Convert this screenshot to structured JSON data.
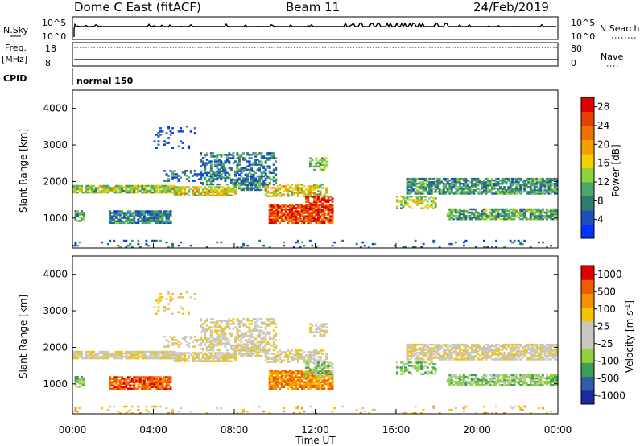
{
  "header": {
    "station": "Dome C East (fitACF)",
    "beam": "Beam 11",
    "date": "24/Feb/2019"
  },
  "summary_panels": {
    "nsky_label": "N.Sky",
    "nsearch_label": "N.Search",
    "freq_label": "Freq.",
    "freq_unit": "[MHz]",
    "nave_label": "Nave",
    "cpid_label": "CPID",
    "cpid_value": "normal 150",
    "noise_ticks": [
      "10^5",
      "10^0"
    ],
    "freq_ticks": [
      "18",
      "8"
    ],
    "nave_ticks": [
      "80",
      "0"
    ]
  },
  "colors": {
    "power_scale": [
      "#0033ff",
      "#1f4fbf",
      "#2e7d6e",
      "#4aa86a",
      "#8fd13a",
      "#f0d000",
      "#f5a000",
      "#f07000",
      "#e84000",
      "#e00000"
    ],
    "velocity_scale": [
      "#e00000",
      "#f05a00",
      "#f59000",
      "#f5c400",
      "#c8c8c0",
      "#c8c8c0",
      "#8fd13a",
      "#3a9e5a",
      "#2f5fa8",
      "#1a2aa0"
    ]
  },
  "chart_data": [
    {
      "type": "heatmap",
      "panel": "power",
      "xlabel": "",
      "ylabel": "Slant Range [km]",
      "xlim": [
        0,
        24
      ],
      "ylim": [
        180,
        4500
      ],
      "y_ticks": [
        "1000",
        "2000",
        "3000",
        "4000"
      ],
      "colorbar_label": "Power [dB]",
      "colorbar_ticks": [
        "4",
        "8",
        "12",
        "16",
        "20",
        "24",
        "28"
      ],
      "colorbar_range": [
        0,
        30
      ]
    },
    {
      "type": "heatmap",
      "panel": "velocity",
      "xlabel": "Time UT",
      "ylabel": "Slant Range [km]",
      "xlim": [
        0,
        24
      ],
      "ylim": [
        180,
        4500
      ],
      "x_ticks": [
        "00:00",
        "04:00",
        "08:00",
        "12:00",
        "16:00",
        "20:00",
        "00:00"
      ],
      "y_ticks": [
        "1000",
        "2000",
        "3000",
        "4000"
      ],
      "colorbar_label": "Velocity [m s",
      "colorbar_label_sup": "-1",
      "colorbar_ticks": [
        "1000",
        "500",
        "100",
        "25",
        "-25",
        "-100",
        "-500",
        "-1000"
      ]
    }
  ]
}
